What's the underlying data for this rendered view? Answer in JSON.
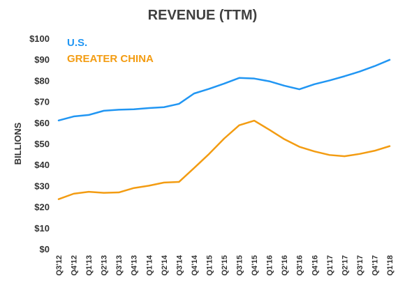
{
  "chart_data": {
    "type": "line",
    "title": "REVENUE (TTM)",
    "ylabel": "BILLIONS",
    "xlabel": "",
    "ylim": [
      0,
      100
    ],
    "yticks": [
      "$0",
      "$10",
      "$20",
      "$30",
      "$40",
      "$50",
      "$60",
      "$70",
      "$80",
      "$90",
      "$100"
    ],
    "grid": false,
    "legend_position": "top-left",
    "categories": [
      "Q3'12",
      "Q4'12",
      "Q1'13",
      "Q2'13",
      "Q3'13",
      "Q4'13",
      "Q1'14",
      "Q2'14",
      "Q3'14",
      "Q4'14",
      "Q1'15",
      "Q2'15",
      "Q3'15",
      "Q4'15",
      "Q1'16",
      "Q2'16",
      "Q3'16",
      "Q4'16",
      "Q1'17",
      "Q2'17",
      "Q3'17",
      "Q4'17",
      "Q1'18"
    ],
    "series": [
      {
        "name": "U.S.",
        "color": "#2196F3",
        "values": [
          61.0,
          62.9,
          63.6,
          65.6,
          66.1,
          66.3,
          66.9,
          67.3,
          68.9,
          73.8,
          76.0,
          78.5,
          81.2,
          80.9,
          79.6,
          77.5,
          75.8,
          78.2,
          80.0,
          82.0,
          84.2,
          86.8,
          89.8
        ]
      },
      {
        "name": "GREATER CHINA",
        "color": "#F39C12",
        "values": [
          23.6,
          26.2,
          27.1,
          26.6,
          26.8,
          28.9,
          30.0,
          31.5,
          31.8,
          38.4,
          45.1,
          52.4,
          58.7,
          60.9,
          56.6,
          52.1,
          48.5,
          46.3,
          44.6,
          44.0,
          45.1,
          46.6,
          48.8
        ]
      }
    ]
  }
}
